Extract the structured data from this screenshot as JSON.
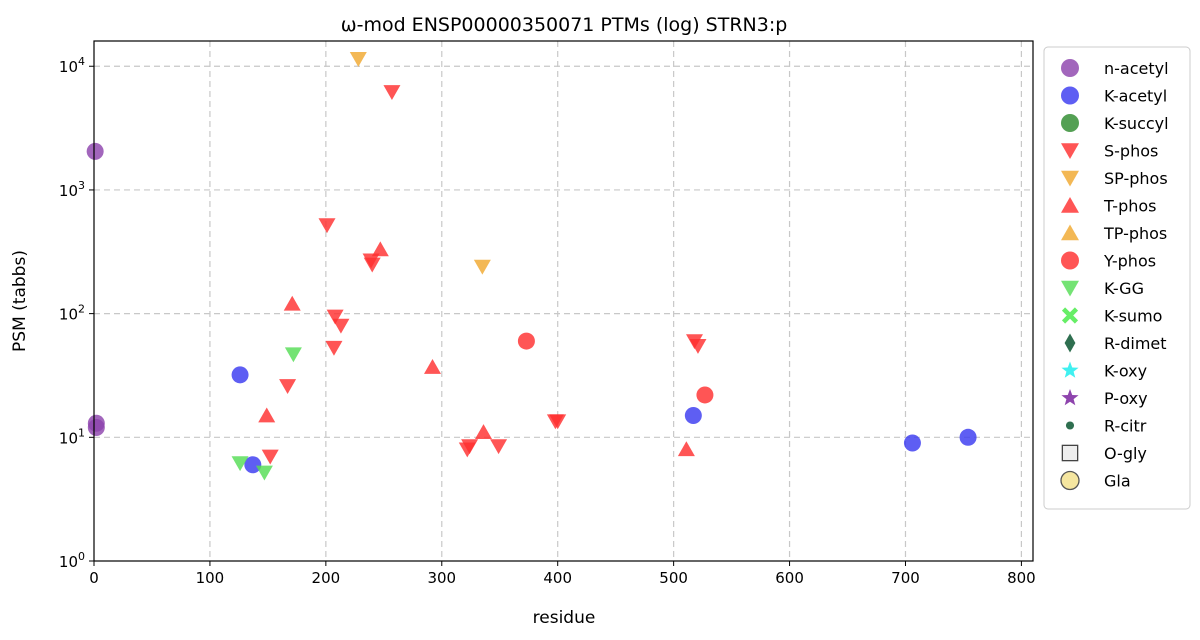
{
  "chart_data": {
    "type": "scatter",
    "title": "ω-mod ENSP00000350071 PTMs (log) STRN3:p",
    "xlabel": "residue",
    "ylabel": "PSM (tabbs)",
    "xlim": [
      0,
      810
    ],
    "ylim": [
      1,
      16000
    ],
    "yscale": "log",
    "grid": true,
    "legend_position": "outside-right",
    "x_ticks": [
      0,
      100,
      200,
      300,
      400,
      500,
      600,
      700,
      800
    ],
    "y_ticks": [
      {
        "value": 1,
        "base": "10",
        "exp": "0"
      },
      {
        "value": 10,
        "base": "10",
        "exp": "1"
      },
      {
        "value": 100,
        "base": "10",
        "exp": "2"
      },
      {
        "value": 1000,
        "base": "10",
        "exp": "3"
      },
      {
        "value": 10000,
        "base": "10",
        "exp": "4"
      }
    ],
    "series": [
      {
        "name": "n-acetyl",
        "marker": "circle",
        "color": "#8e44ad",
        "points": [
          [
            1,
            2050
          ],
          [
            2,
            13
          ],
          [
            2,
            12
          ]
        ]
      },
      {
        "name": "K-acetyl",
        "marker": "circle",
        "color": "#3a3af0",
        "points": [
          [
            126,
            32
          ],
          [
            137,
            6
          ],
          [
            517,
            15
          ],
          [
            706,
            9
          ],
          [
            754,
            10
          ]
        ]
      },
      {
        "name": "K-succyl",
        "marker": "circle",
        "color": "#2e8b2e",
        "points": []
      },
      {
        "name": "S-phos",
        "marker": "triangle-down",
        "color": "#ff3030",
        "points": [
          [
            257,
            6200
          ],
          [
            201,
            520
          ],
          [
            239,
            270
          ],
          [
            240,
            250
          ],
          [
            208,
            95
          ],
          [
            213,
            80
          ],
          [
            207,
            53
          ],
          [
            167,
            26
          ],
          [
            152,
            7
          ],
          [
            322,
            8
          ],
          [
            324,
            8.5
          ],
          [
            349,
            8.5
          ],
          [
            398,
            13.5
          ],
          [
            400,
            13.5
          ],
          [
            518,
            60
          ],
          [
            521,
            55
          ]
        ]
      },
      {
        "name": "SP-phos",
        "marker": "triangle-down",
        "color": "#f0a830",
        "points": [
          [
            228,
            11500
          ],
          [
            335,
            240
          ]
        ]
      },
      {
        "name": "T-phos",
        "marker": "triangle-up",
        "color": "#ff3030",
        "points": [
          [
            171,
            120
          ],
          [
            247,
            330
          ],
          [
            292,
            37
          ],
          [
            149,
            15
          ],
          [
            336,
            11
          ],
          [
            511,
            8
          ]
        ]
      },
      {
        "name": "TP-phos",
        "marker": "triangle-up",
        "color": "#f0a830",
        "points": []
      },
      {
        "name": "Y-phos",
        "marker": "circle",
        "color": "#ff3030",
        "points": [
          [
            373,
            60
          ],
          [
            527,
            22
          ]
        ]
      },
      {
        "name": "K-GG",
        "marker": "triangle-down",
        "color": "#55dd55",
        "points": [
          [
            172,
            47
          ],
          [
            126,
            6.2
          ],
          [
            147,
            5.2
          ]
        ]
      },
      {
        "name": "K-sumo",
        "marker": "x",
        "color": "#66ee66",
        "points": []
      },
      {
        "name": "R-dimet",
        "marker": "diamond",
        "color": "#2f6f50",
        "points": []
      },
      {
        "name": "K-oxy",
        "marker": "star",
        "color": "#40f0f0",
        "points": []
      },
      {
        "name": "P-oxy",
        "marker": "star",
        "color": "#8e44ad",
        "points": []
      },
      {
        "name": "R-citr",
        "marker": "small-circle",
        "color": "#2f6f50",
        "points": []
      },
      {
        "name": "O-gly",
        "marker": "square-open",
        "color": "#333333",
        "points": []
      },
      {
        "name": "Gla",
        "marker": "circle-yellow",
        "color": "#f5e6a0",
        "points": []
      }
    ]
  }
}
